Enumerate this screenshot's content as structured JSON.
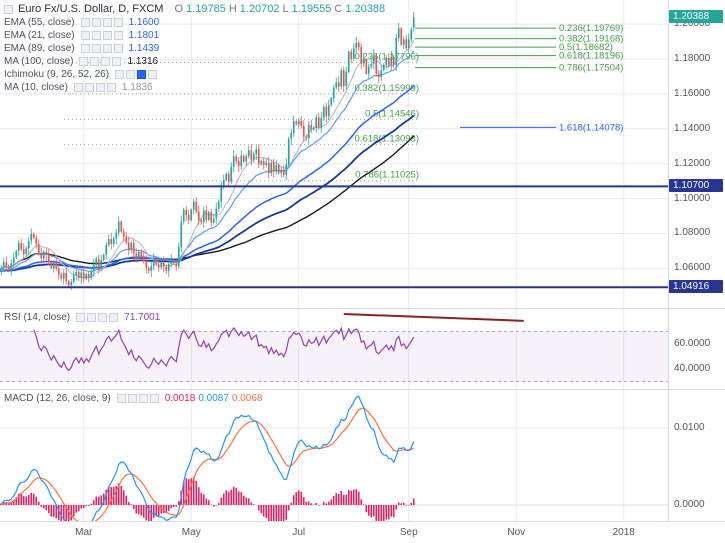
{
  "header": {
    "symbol_title": "Euro Fx/U.S. Dollar, D, FXCM",
    "ohlc": {
      "o_label": "O",
      "o": "1.19785",
      "h_label": "H",
      "h": "1.20702",
      "l_label": "L",
      "l": "1.19555",
      "c_label": "C",
      "c": "1.20388"
    }
  },
  "indicator_buttons": [
    "visibility-icon",
    "settings-icon",
    "delete-icon",
    "more-icon"
  ],
  "indicators": [
    {
      "label": "EMA (55, close)",
      "value": "1.1600",
      "value_color": "#2962ff"
    },
    {
      "label": "EMA (21, close)",
      "value": "1.1801",
      "value_color": "#2962ff"
    },
    {
      "label": "EMA (89, close)",
      "value": "1.1439",
      "value_color": "#2962ff"
    },
    {
      "label": "MA (100, close)",
      "value": "1.1316",
      "value_color": "#1b1b1b"
    },
    {
      "label": "Ichimoku (9, 26, 52, 26)",
      "value": "",
      "value_color": "",
      "highlight_button": 2
    },
    {
      "label": "MA (10, close)",
      "value": "1.1836",
      "value_color": "#9598a1"
    }
  ],
  "rsi_pane": {
    "label": "RSI (14, close)",
    "value": "71.7001"
  },
  "macd_pane": {
    "label": "MACD (12, 26, close, 9)",
    "values": [
      "0.0018",
      "0.0087",
      "0.0068"
    ]
  },
  "price_axis": {
    "labels": [
      "1.20000",
      "1.18000",
      "1.16000",
      "1.14000",
      "1.12000",
      "1.10000",
      "1.08000",
      "1.06000"
    ],
    "badges": [
      {
        "text": "1.20388",
        "bg": "#26a69a"
      },
      {
        "text": "1.10700",
        "bg": "#283593"
      },
      {
        "text": "1.04916",
        "bg": "#283593"
      }
    ]
  },
  "rsi_axis": [
    "60.0000",
    "40.0000"
  ],
  "macd_axis": [
    "0.0100",
    "0.0000"
  ],
  "colors": {
    "up": "#26a69a",
    "down": "#ef5350",
    "ma10": "#b2b5be",
    "ema21": "#5b9cf6",
    "ema55": "#2962ff",
    "ema89": "#16399e",
    "ma100": "#1b1b1b",
    "fib": "#43a047",
    "fib_ext": "#2962ff",
    "navy": "#283593",
    "rsi": "#8e44ad",
    "macd_line": "#2196f3",
    "macd_signal": "#ff7043",
    "macd_hist": "#e91e63",
    "trendline": "#8b2222",
    "grid": "#e8eaf2",
    "axis_text": "#555555"
  },
  "chart_data": {
    "type": "candlestick",
    "symbol": "Euro Fx / U.S. Dollar",
    "timeframe": "D",
    "exchange": "FXCM",
    "last_candle": {
      "open": 1.19785,
      "high": 1.20702,
      "low": 1.19555,
      "close": 1.20388
    },
    "closes": [
      1.0585,
      1.0605,
      1.0635,
      1.0612,
      1.0594,
      1.063,
      1.0662,
      1.07,
      1.0745,
      1.071,
      1.0682,
      1.0715,
      1.0758,
      1.0798,
      1.0775,
      1.074,
      1.0685,
      1.0658,
      1.0694,
      1.068,
      1.064,
      1.0602,
      1.0632,
      1.0598,
      1.0565,
      1.0542,
      1.0575,
      1.0528,
      1.0503,
      1.0522,
      1.0562,
      1.058,
      1.0545,
      1.0576,
      1.054,
      1.0568,
      1.0545,
      1.0582,
      1.062,
      1.0656,
      1.0605,
      1.0648,
      1.0678,
      1.0735,
      1.0768,
      1.074,
      1.0772,
      1.0805,
      1.0868,
      1.0812,
      1.0782,
      1.0748,
      1.0705,
      1.0746,
      1.0685,
      1.0656,
      1.0695,
      1.0672,
      1.064,
      1.0602,
      1.0586,
      1.0612,
      1.0655,
      1.0622,
      1.0606,
      1.0635,
      1.061,
      1.0586,
      1.0625,
      1.0648,
      1.0628,
      1.0612,
      1.0722,
      1.0868,
      1.0935,
      1.0906,
      1.0876,
      1.0936,
      1.0982,
      1.0926,
      1.0876,
      1.0866,
      1.0932,
      1.0878,
      1.0922,
      1.0862,
      1.0886,
      1.0942,
      1.0982,
      1.1076,
      1.1106,
      1.1142,
      1.1096,
      1.1182,
      1.1242,
      1.1216,
      1.1186,
      1.1246,
      1.1212,
      1.1242,
      1.1276,
      1.1222,
      1.1256,
      1.1282,
      1.1196,
      1.1216,
      1.1192,
      1.1206,
      1.1146,
      1.1206,
      1.1156,
      1.1192,
      1.1146,
      1.1166,
      1.1136,
      1.1196,
      1.1342,
      1.1376,
      1.1442,
      1.1426,
      1.1446,
      1.1416,
      1.1356,
      1.1346,
      1.1422,
      1.1396,
      1.1406,
      1.1466,
      1.1406,
      1.1462,
      1.1526,
      1.1472,
      1.1536,
      1.1576,
      1.1636,
      1.1666,
      1.1642,
      1.1736,
      1.1646,
      1.1726,
      1.1842,
      1.1802,
      1.1862,
      1.1892,
      1.1868,
      1.1776,
      1.1796,
      1.1716,
      1.1756,
      1.1772,
      1.1822,
      1.1716,
      1.1696,
      1.1736,
      1.1766,
      1.1806,
      1.1762,
      1.1812,
      1.1766,
      1.1922,
      1.1976,
      1.1882,
      1.1912,
      1.1862,
      1.1912,
      1.197,
      1.20388
    ],
    "x_ticks": [
      {
        "label": "Mar",
        "index": 34
      },
      {
        "label": "May",
        "index": 77
      },
      {
        "label": "Jul",
        "index": 120
      },
      {
        "label": "Sep",
        "index": 164
      },
      {
        "label": "Nov",
        "index": 207
      },
      {
        "label": "2018",
        "index": 250
      }
    ],
    "price_gridlines": [
      1.2,
      1.18,
      1.16,
      1.14,
      1.12,
      1.1,
      1.08,
      1.06
    ],
    "horizontal_lines": [
      {
        "price": 1.107,
        "axis_label": "1.10700"
      },
      {
        "price": 1.04916,
        "axis_label": "1.04916"
      }
    ],
    "overlays": [
      {
        "name": "MA 10",
        "kind": "sma",
        "period": 10
      },
      {
        "name": "EMA 21",
        "kind": "ema",
        "period": 21
      },
      {
        "name": "EMA 55",
        "kind": "ema",
        "period": 55
      },
      {
        "name": "EMA 89",
        "kind": "ema",
        "period": 89
      },
      {
        "name": "MA 100",
        "kind": "sma",
        "period": 100
      }
    ],
    "fib_recent": {
      "levels": [
        {
          "ratio": "0.236",
          "price": 1.19769,
          "label": "0.236(1.19769)"
        },
        {
          "ratio": "0.382",
          "price": 1.19168,
          "label": "0.382(1.19168)"
        },
        {
          "ratio": "0.5",
          "price": 1.18682,
          "label": "0.5(1.18682)"
        },
        {
          "ratio": "0.618",
          "price": 1.18196,
          "label": "0.618(1.18196)"
        },
        {
          "ratio": "0.786",
          "price": 1.17504,
          "label": "0.786(1.17504)"
        }
      ]
    },
    "fib_major": {
      "levels": [
        {
          "ratio": "0.236",
          "price": 1.17796,
          "label": "0.236(1.17796)"
        },
        {
          "ratio": "0.382",
          "price": 1.15999,
          "label": "0.382(1.15999)"
        },
        {
          "ratio": "0.5",
          "price": 1.14546,
          "label": "0.5(1.14546)"
        },
        {
          "ratio": "0.618",
          "price": 1.13093,
          "label": "0.618(1.13093)"
        },
        {
          "ratio": "0.786",
          "price": 1.11025,
          "label": "0.786(1.11025)"
        }
      ]
    },
    "fib_extension": {
      "ratio": "1.618",
      "price": 1.14078,
      "label": "1.618(1.14078)"
    },
    "rsi": {
      "period": 14,
      "last": 71.7001,
      "band": [
        30,
        70
      ],
      "trendline": {
        "from_index": 138,
        "from_value": 84,
        "to_index": 210,
        "to_value": 78.5
      }
    },
    "macd": {
      "fast": 12,
      "slow": 26,
      "signal": 9,
      "last_histogram": 0.0018,
      "last_macd": 0.0087,
      "last_signal": 0.0068
    }
  }
}
